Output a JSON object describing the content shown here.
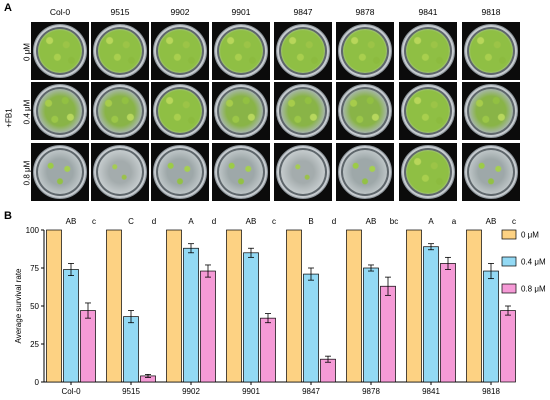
{
  "panel_a": {
    "label": "A",
    "treatment_label": "+FB1",
    "columns": [
      "Col-0",
      "9515",
      "9902",
      "9901",
      "9847",
      "9878",
      "9841",
      "9818"
    ],
    "rows": [
      "0 μM",
      "0.4 μM",
      "0.8 μM"
    ],
    "growth": [
      [
        "full",
        "full",
        "full",
        "full",
        "full",
        "full",
        "full",
        "full"
      ],
      [
        "mid",
        "mid",
        "full",
        "mid",
        "mid",
        "mid",
        "full",
        "mid"
      ],
      [
        "low",
        "min",
        "low",
        "low",
        "min",
        "low",
        "full",
        "low"
      ]
    ]
  },
  "panel_b": {
    "label": "B"
  },
  "chart_data": {
    "type": "bar",
    "categories": [
      "Col-0",
      "9515",
      "9902",
      "9901",
      "9847",
      "9878",
      "9841",
      "9818"
    ],
    "series": [
      {
        "name": "0 μM",
        "color": "#fdd283",
        "values": [
          100,
          100,
          100,
          100,
          100,
          100,
          100,
          100
        ],
        "errors": [
          0,
          0,
          0,
          0,
          0,
          0,
          0,
          0
        ]
      },
      {
        "name": "0.4 μM",
        "color": "#93d9f4",
        "values": [
          74,
          43,
          88,
          85,
          71,
          75,
          89,
          73
        ],
        "errors": [
          4,
          4,
          3,
          3,
          4,
          2,
          2,
          5
        ]
      },
      {
        "name": "0.8 μM",
        "color": "#f59ad6",
        "values": [
          47,
          4,
          73,
          42,
          15,
          63,
          78,
          47
        ],
        "errors": [
          5,
          1,
          4,
          3,
          2,
          6,
          4,
          3
        ]
      }
    ],
    "upper_letters": [
      "AB",
      "C",
      "A",
      "AB",
      "B",
      "AB",
      "A",
      "AB"
    ],
    "lower_letters": [
      "c",
      "d",
      "d",
      "c",
      "d",
      "bc",
      "a",
      "c"
    ],
    "ylabel": "Average survival rate",
    "ylim": [
      0,
      100
    ],
    "yticks": [
      0,
      25,
      50,
      75,
      100
    ],
    "legend_position": "right",
    "grid": false
  }
}
